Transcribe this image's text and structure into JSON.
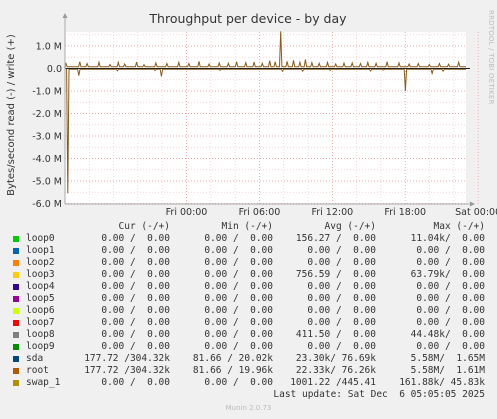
{
  "chart_data": {
    "type": "line",
    "title": "Throughput per device - by day",
    "ylabel": "Bytes/second read (-) / write (+)",
    "ylim": [
      -6.0,
      1.9
    ],
    "yticks": [
      1.0,
      0.0,
      -1.0,
      -2.0,
      -3.0,
      -4.0,
      -5.0,
      -6.0
    ],
    "ytick_labels": [
      "1.0 M",
      "0.0",
      "-1.0 M",
      "-2.0 M",
      "-3.0 M",
      "-4.0 M",
      "-5.0 M",
      "-6.0 M"
    ],
    "xlim_hours": [
      -10,
      23
    ],
    "xticks_hours": [
      0,
      6,
      12,
      18,
      24
    ],
    "xtick_labels": [
      "Fri 00:00",
      "Fri 06:00",
      "Fri 12:00",
      "Fri 18:00",
      "Sat 00:00"
    ],
    "grid": true,
    "series_color": "#8a5a19",
    "write_spikes": [
      {
        "h": -11.8,
        "v": 0.22
      },
      {
        "h": -10.3,
        "v": 0.3
      },
      {
        "h": -9.5,
        "v": 0.22
      },
      {
        "h": -8.2,
        "v": 0.28
      },
      {
        "h": -7.0,
        "v": 0.18
      },
      {
        "h": -6.1,
        "v": 0.27
      },
      {
        "h": -5.4,
        "v": 0.2
      },
      {
        "h": -4.1,
        "v": 0.29
      },
      {
        "h": -3.3,
        "v": 0.17
      },
      {
        "h": -2.0,
        "v": 0.25
      },
      {
        "h": -0.8,
        "v": 0.22
      },
      {
        "h": 0.5,
        "v": 0.27
      },
      {
        "h": 1.6,
        "v": 0.22
      },
      {
        "h": 2.7,
        "v": 0.32
      },
      {
        "h": 3.8,
        "v": 0.2
      },
      {
        "h": 4.9,
        "v": 0.25
      },
      {
        "h": 5.9,
        "v": 0.23
      },
      {
        "h": 6.8,
        "v": 0.3
      },
      {
        "h": 7.8,
        "v": 0.26
      },
      {
        "h": 8.7,
        "v": 0.29
      },
      {
        "h": 9.6,
        "v": 0.23
      },
      {
        "h": 10.4,
        "v": 0.35
      },
      {
        "h": 11.0,
        "v": 0.3
      },
      {
        "h": 11.6,
        "v": 1.65
      },
      {
        "h": 12.3,
        "v": 0.32
      },
      {
        "h": 13.0,
        "v": 0.36
      },
      {
        "h": 13.7,
        "v": 0.28
      },
      {
        "h": 14.3,
        "v": 0.4
      },
      {
        "h": 15.0,
        "v": 0.26
      },
      {
        "h": 15.8,
        "v": 0.23
      },
      {
        "h": 16.7,
        "v": 0.27
      },
      {
        "h": 17.6,
        "v": 0.2
      },
      {
        "h": 18.5,
        "v": 0.24
      },
      {
        "h": 19.4,
        "v": 0.25
      },
      {
        "h": 20.3,
        "v": 0.22
      },
      {
        "h": 21.1,
        "v": 0.27
      },
      {
        "h": 22.0,
        "v": 0.23
      },
      {
        "h": 23.2,
        "v": 0.3
      },
      {
        "h": 24.5,
        "v": 0.25
      },
      {
        "h": 25.6,
        "v": 0.2
      },
      {
        "h": 26.6,
        "v": 0.22
      },
      {
        "h": 27.8,
        "v": 0.18
      },
      {
        "h": 28.9,
        "v": 0.22
      },
      {
        "h": 29.9,
        "v": 0.19
      },
      {
        "h": 31.0,
        "v": 0.28
      }
    ],
    "read_spikes": [
      {
        "h": -11.6,
        "v": -5.55
      },
      {
        "h": -10.4,
        "v": -0.32
      },
      {
        "h": -6.2,
        "v": -0.1
      },
      {
        "h": -2.1,
        "v": -0.09
      },
      {
        "h": -1.4,
        "v": -0.35
      },
      {
        "h": 5.0,
        "v": -0.08
      },
      {
        "h": 11.8,
        "v": -0.12
      },
      {
        "h": 14.0,
        "v": -0.12
      },
      {
        "h": 17.0,
        "v": -0.08
      },
      {
        "h": 21.4,
        "v": -0.11
      },
      {
        "h": 22.8,
        "v": -0.07
      },
      {
        "h": 25.2,
        "v": -1.0
      },
      {
        "h": 28.1,
        "v": -0.22
      },
      {
        "h": 29.3,
        "v": -0.12
      }
    ]
  },
  "side_text": "RRDTOOL / TOBI OETIKER",
  "legend": {
    "headers": {
      "cur": "Cur (-/+)",
      "min": "Min (-/+)",
      "avg": "Avg (-/+)",
      "max": "Max (-/+)"
    },
    "rows": [
      {
        "name": "loop0",
        "color": "#00cc00",
        "cur": "0.00 /  0.00",
        "min": "0.00 /  0.00",
        "avg": "156.27 /  0.00",
        "max": "11.04k/  0.00"
      },
      {
        "name": "loop1",
        "color": "#0066b3",
        "cur": "0.00 /  0.00",
        "min": "0.00 /  0.00",
        "avg": "0.00 /  0.00",
        "max": "0.00 /  0.00"
      },
      {
        "name": "loop2",
        "color": "#ff8000",
        "cur": "0.00 /  0.00",
        "min": "0.00 /  0.00",
        "avg": "0.00 /  0.00",
        "max": "0.00 /  0.00"
      },
      {
        "name": "loop3",
        "color": "#ffcc00",
        "cur": "0.00 /  0.00",
        "min": "0.00 /  0.00",
        "avg": "756.59 /  0.00",
        "max": "63.79k/  0.00"
      },
      {
        "name": "loop4",
        "color": "#330099",
        "cur": "0.00 /  0.00",
        "min": "0.00 /  0.00",
        "avg": "0.00 /  0.00",
        "max": "0.00 /  0.00"
      },
      {
        "name": "loop5",
        "color": "#990099",
        "cur": "0.00 /  0.00",
        "min": "0.00 /  0.00",
        "avg": "0.00 /  0.00",
        "max": "0.00 /  0.00"
      },
      {
        "name": "loop6",
        "color": "#ccff00",
        "cur": "0.00 /  0.00",
        "min": "0.00 /  0.00",
        "avg": "0.00 /  0.00",
        "max": "0.00 /  0.00"
      },
      {
        "name": "loop7",
        "color": "#ff0000",
        "cur": "0.00 /  0.00",
        "min": "0.00 /  0.00",
        "avg": "0.00 /  0.00",
        "max": "0.00 /  0.00"
      },
      {
        "name": "loop8",
        "color": "#808080",
        "cur": "0.00 /  0.00",
        "min": "0.00 /  0.00",
        "avg": "411.50 /  0.00",
        "max": "44.48k/  0.00"
      },
      {
        "name": "loop9",
        "color": "#008f00",
        "cur": "0.00 /  0.00",
        "min": "0.00 /  0.00",
        "avg": "0.00 /  0.00",
        "max": "0.00 /  0.00"
      },
      {
        "name": "sda",
        "color": "#00487d",
        "cur": "177.72 /304.32k",
        "min": "81.66 / 20.02k",
        "avg": "23.30k/ 76.69k",
        "max": "5.58M/  1.65M"
      },
      {
        "name": "root",
        "color": "#b35a00",
        "cur": "177.72 /304.32k",
        "min": "81.66 / 19.96k",
        "avg": "22.33k/ 76.26k",
        "max": "5.58M/  1.61M"
      },
      {
        "name": "swap_1",
        "color": "#b38f00",
        "cur": "0.00 /  0.00",
        "min": "0.00 /  0.00",
        "avg": "1001.22 /445.41",
        "max": "161.88k/ 45.83k"
      }
    ]
  },
  "last_update": "Last update: Sat Dec  6 05:05:05 2025",
  "munin_version": "Munin 2.0.73"
}
